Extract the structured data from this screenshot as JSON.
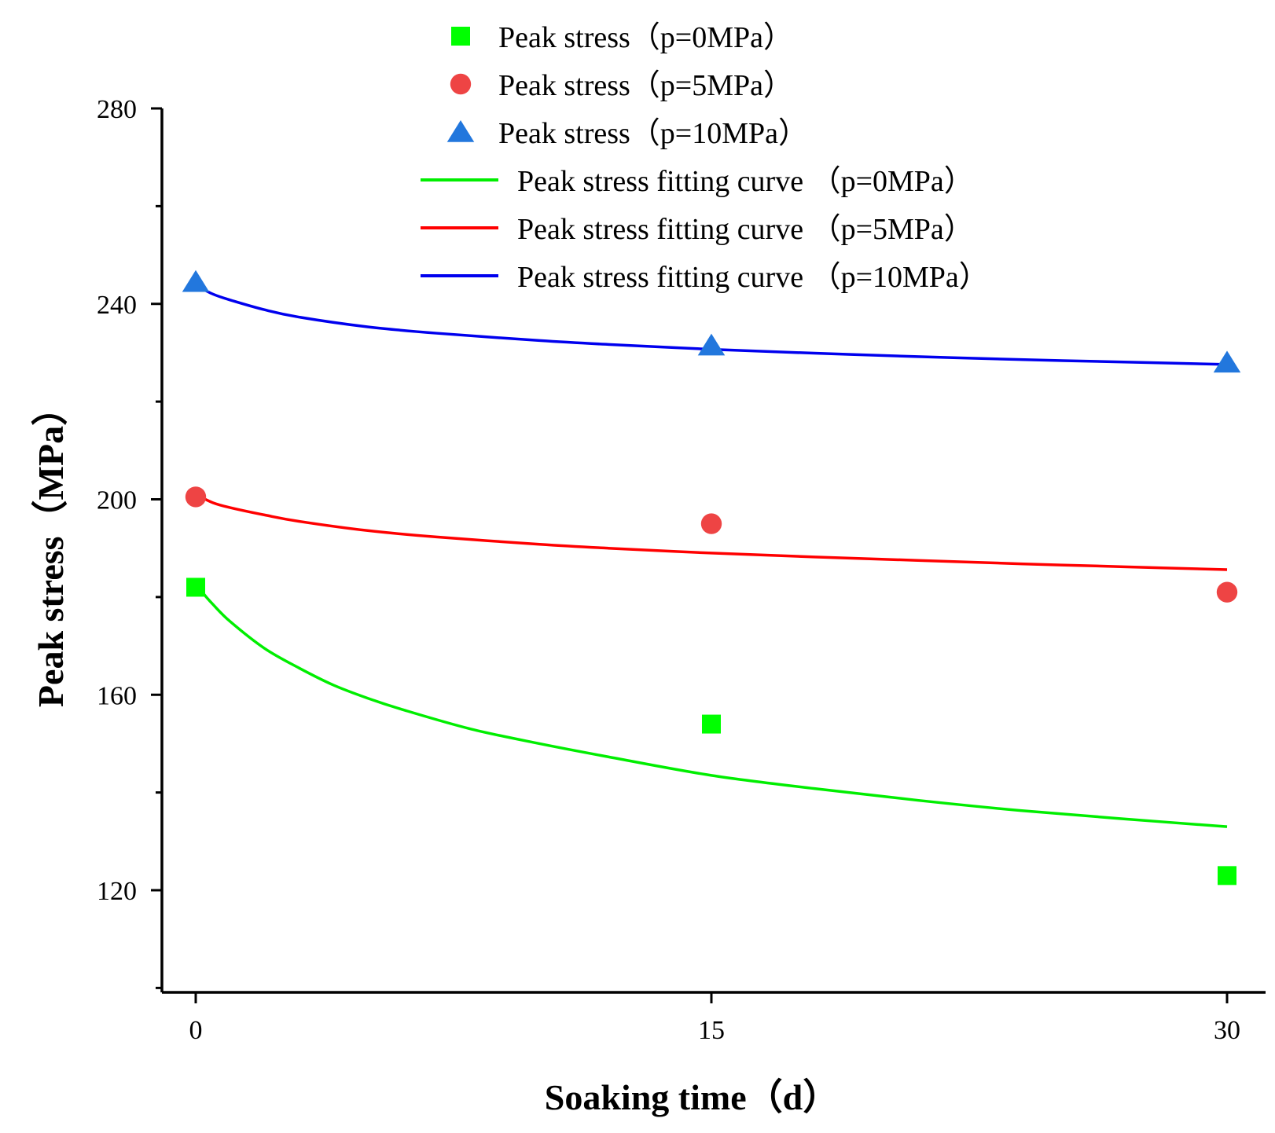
{
  "chart_data": {
    "type": "scatter",
    "title": "",
    "xlabel": "Soaking time（d）",
    "ylabel": "Peak stress（MPa）",
    "xlim": [
      -1,
      32
    ],
    "ylim": [
      100,
      280
    ],
    "x_ticks": [
      0,
      15,
      30
    ],
    "x_tick_labels": [
      "0",
      "15",
      "30"
    ],
    "y_major_ticks": [
      120,
      160,
      200,
      240,
      280
    ],
    "y_tick_labels": [
      "120",
      "160",
      "200",
      "240",
      "280"
    ],
    "y_minor_ticks": [
      100,
      140,
      180,
      220,
      260
    ],
    "grid": false,
    "legend_position": "top-center",
    "series": [
      {
        "name": "Peak stress（p=0MPa）",
        "kind": "scatter",
        "marker": "square",
        "color": "#00ff00",
        "x": [
          0,
          15,
          30
        ],
        "y": [
          182,
          154,
          123
        ]
      },
      {
        "name": "Peak stress（p=5MPa）",
        "kind": "scatter",
        "marker": "circle",
        "color": "#ee4444",
        "x": [
          0,
          15,
          30
        ],
        "y": [
          200.5,
          195,
          181
        ]
      },
      {
        "name": "Peak stress（p=10MPa）",
        "kind": "scatter",
        "marker": "triangle",
        "color": "#2277dd",
        "x": [
          0,
          15,
          30
        ],
        "y": [
          244.5,
          231.5,
          228
        ]
      },
      {
        "name": "Peak stress fitting curve （p=0MPa）",
        "kind": "line",
        "color": "#00ee00",
        "x": [
          0,
          0.25,
          0.5,
          1,
          2,
          3,
          4,
          5,
          6,
          8,
          10,
          12,
          15,
          18,
          21,
          24,
          27,
          30
        ],
        "y": [
          183,
          180.5,
          178.5,
          175,
          169.5,
          165.5,
          162,
          159.3,
          157,
          153,
          150,
          147.3,
          143.5,
          140.8,
          138.4,
          136.3,
          134.6,
          133
        ]
      },
      {
        "name": "Peak stress fitting curve （p=5MPa）",
        "kind": "line",
        "color": "#ff0000",
        "x": [
          0,
          0.5,
          1,
          2,
          3,
          5,
          7,
          10,
          12,
          15,
          18,
          21,
          24,
          27,
          30
        ],
        "y": [
          201,
          199.3,
          198.3,
          196.8,
          195.5,
          193.6,
          192.3,
          190.8,
          190,
          189,
          188.2,
          187.5,
          186.8,
          186.2,
          185.6
        ]
      },
      {
        "name": "Peak stress fitting curve （p=10MPa）",
        "kind": "line",
        "color": "#0000ee",
        "x": [
          0,
          0.5,
          1,
          2,
          3,
          5,
          7,
          10,
          12,
          15,
          18,
          21,
          24,
          27,
          30
        ],
        "y": [
          243.8,
          242,
          240.8,
          238.8,
          237.3,
          235.3,
          234,
          232.5,
          231.7,
          230.7,
          229.9,
          229.2,
          228.6,
          228.1,
          227.6
        ]
      }
    ]
  }
}
